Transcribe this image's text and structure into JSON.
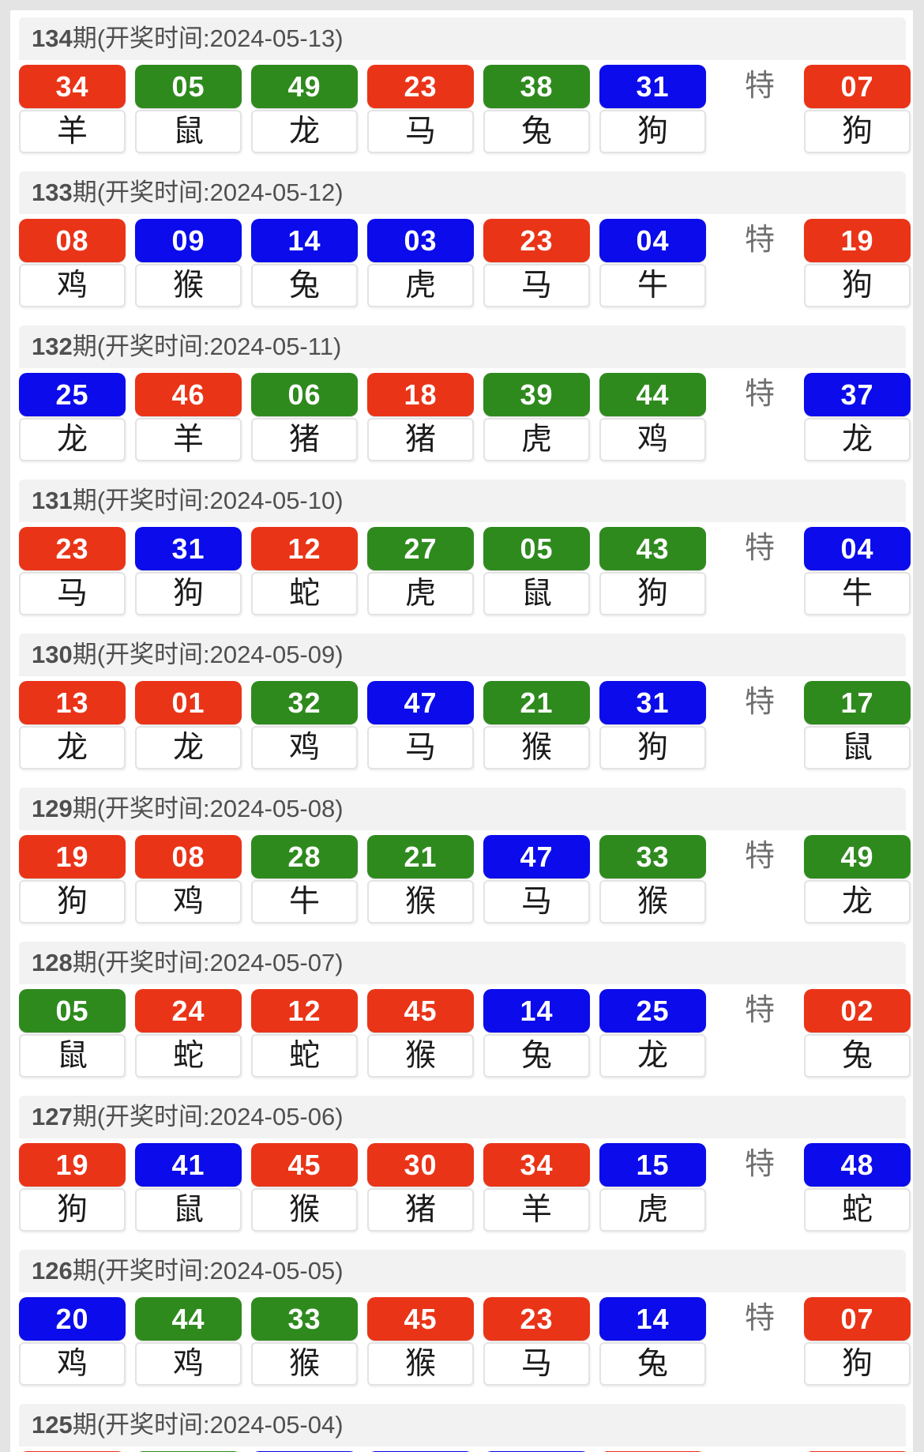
{
  "colors": {
    "red": "#ea3418",
    "green": "#2f8a1e",
    "blue": "#0b0beb"
  },
  "special_column_label": "特",
  "rows": [
    {
      "period": "134",
      "title_suffix": "期(开奖时间:2024-05-13)",
      "balls": [
        {
          "num": "34",
          "color": "red",
          "zodiac": "羊"
        },
        {
          "num": "05",
          "color": "green",
          "zodiac": "鼠"
        },
        {
          "num": "49",
          "color": "green",
          "zodiac": "龙"
        },
        {
          "num": "23",
          "color": "red",
          "zodiac": "马"
        },
        {
          "num": "38",
          "color": "green",
          "zodiac": "兔"
        },
        {
          "num": "31",
          "color": "blue",
          "zodiac": "狗"
        }
      ],
      "special": {
        "num": "07",
        "color": "red",
        "zodiac": "狗"
      }
    },
    {
      "period": "133",
      "title_suffix": "期(开奖时间:2024-05-12)",
      "balls": [
        {
          "num": "08",
          "color": "red",
          "zodiac": "鸡"
        },
        {
          "num": "09",
          "color": "blue",
          "zodiac": "猴"
        },
        {
          "num": "14",
          "color": "blue",
          "zodiac": "兔"
        },
        {
          "num": "03",
          "color": "blue",
          "zodiac": "虎"
        },
        {
          "num": "23",
          "color": "red",
          "zodiac": "马"
        },
        {
          "num": "04",
          "color": "blue",
          "zodiac": "牛"
        }
      ],
      "special": {
        "num": "19",
        "color": "red",
        "zodiac": "狗"
      }
    },
    {
      "period": "132",
      "title_suffix": "期(开奖时间:2024-05-11)",
      "balls": [
        {
          "num": "25",
          "color": "blue",
          "zodiac": "龙"
        },
        {
          "num": "46",
          "color": "red",
          "zodiac": "羊"
        },
        {
          "num": "06",
          "color": "green",
          "zodiac": "猪"
        },
        {
          "num": "18",
          "color": "red",
          "zodiac": "猪"
        },
        {
          "num": "39",
          "color": "green",
          "zodiac": "虎"
        },
        {
          "num": "44",
          "color": "green",
          "zodiac": "鸡"
        }
      ],
      "special": {
        "num": "37",
        "color": "blue",
        "zodiac": "龙"
      }
    },
    {
      "period": "131",
      "title_suffix": "期(开奖时间:2024-05-10)",
      "balls": [
        {
          "num": "23",
          "color": "red",
          "zodiac": "马"
        },
        {
          "num": "31",
          "color": "blue",
          "zodiac": "狗"
        },
        {
          "num": "12",
          "color": "red",
          "zodiac": "蛇"
        },
        {
          "num": "27",
          "color": "green",
          "zodiac": "虎"
        },
        {
          "num": "05",
          "color": "green",
          "zodiac": "鼠"
        },
        {
          "num": "43",
          "color": "green",
          "zodiac": "狗"
        }
      ],
      "special": {
        "num": "04",
        "color": "blue",
        "zodiac": "牛"
      }
    },
    {
      "period": "130",
      "title_suffix": "期(开奖时间:2024-05-09)",
      "balls": [
        {
          "num": "13",
          "color": "red",
          "zodiac": "龙"
        },
        {
          "num": "01",
          "color": "red",
          "zodiac": "龙"
        },
        {
          "num": "32",
          "color": "green",
          "zodiac": "鸡"
        },
        {
          "num": "47",
          "color": "blue",
          "zodiac": "马"
        },
        {
          "num": "21",
          "color": "green",
          "zodiac": "猴"
        },
        {
          "num": "31",
          "color": "blue",
          "zodiac": "狗"
        }
      ],
      "special": {
        "num": "17",
        "color": "green",
        "zodiac": "鼠"
      }
    },
    {
      "period": "129",
      "title_suffix": "期(开奖时间:2024-05-08)",
      "balls": [
        {
          "num": "19",
          "color": "red",
          "zodiac": "狗"
        },
        {
          "num": "08",
          "color": "red",
          "zodiac": "鸡"
        },
        {
          "num": "28",
          "color": "green",
          "zodiac": "牛"
        },
        {
          "num": "21",
          "color": "green",
          "zodiac": "猴"
        },
        {
          "num": "47",
          "color": "blue",
          "zodiac": "马"
        },
        {
          "num": "33",
          "color": "green",
          "zodiac": "猴"
        }
      ],
      "special": {
        "num": "49",
        "color": "green",
        "zodiac": "龙"
      }
    },
    {
      "period": "128",
      "title_suffix": "期(开奖时间:2024-05-07)",
      "balls": [
        {
          "num": "05",
          "color": "green",
          "zodiac": "鼠"
        },
        {
          "num": "24",
          "color": "red",
          "zodiac": "蛇"
        },
        {
          "num": "12",
          "color": "red",
          "zodiac": "蛇"
        },
        {
          "num": "45",
          "color": "red",
          "zodiac": "猴"
        },
        {
          "num": "14",
          "color": "blue",
          "zodiac": "兔"
        },
        {
          "num": "25",
          "color": "blue",
          "zodiac": "龙"
        }
      ],
      "special": {
        "num": "02",
        "color": "red",
        "zodiac": "兔"
      }
    },
    {
      "period": "127",
      "title_suffix": "期(开奖时间:2024-05-06)",
      "balls": [
        {
          "num": "19",
          "color": "red",
          "zodiac": "狗"
        },
        {
          "num": "41",
          "color": "blue",
          "zodiac": "鼠"
        },
        {
          "num": "45",
          "color": "red",
          "zodiac": "猴"
        },
        {
          "num": "30",
          "color": "red",
          "zodiac": "猪"
        },
        {
          "num": "34",
          "color": "red",
          "zodiac": "羊"
        },
        {
          "num": "15",
          "color": "blue",
          "zodiac": "虎"
        }
      ],
      "special": {
        "num": "48",
        "color": "blue",
        "zodiac": "蛇"
      }
    },
    {
      "period": "126",
      "title_suffix": "期(开奖时间:2024-05-05)",
      "balls": [
        {
          "num": "20",
          "color": "blue",
          "zodiac": "鸡"
        },
        {
          "num": "44",
          "color": "green",
          "zodiac": "鸡"
        },
        {
          "num": "33",
          "color": "green",
          "zodiac": "猴"
        },
        {
          "num": "45",
          "color": "red",
          "zodiac": "猴"
        },
        {
          "num": "23",
          "color": "red",
          "zodiac": "马"
        },
        {
          "num": "14",
          "color": "blue",
          "zodiac": "兔"
        }
      ],
      "special": {
        "num": "07",
        "color": "red",
        "zodiac": "狗"
      }
    }
  ],
  "partial_row": {
    "period": "125",
    "title_suffix": "期(开奖时间:2024-05-04)",
    "ball_colors": [
      "red",
      "green",
      "blue",
      "blue",
      "blue",
      "red"
    ],
    "special_color": "red"
  }
}
